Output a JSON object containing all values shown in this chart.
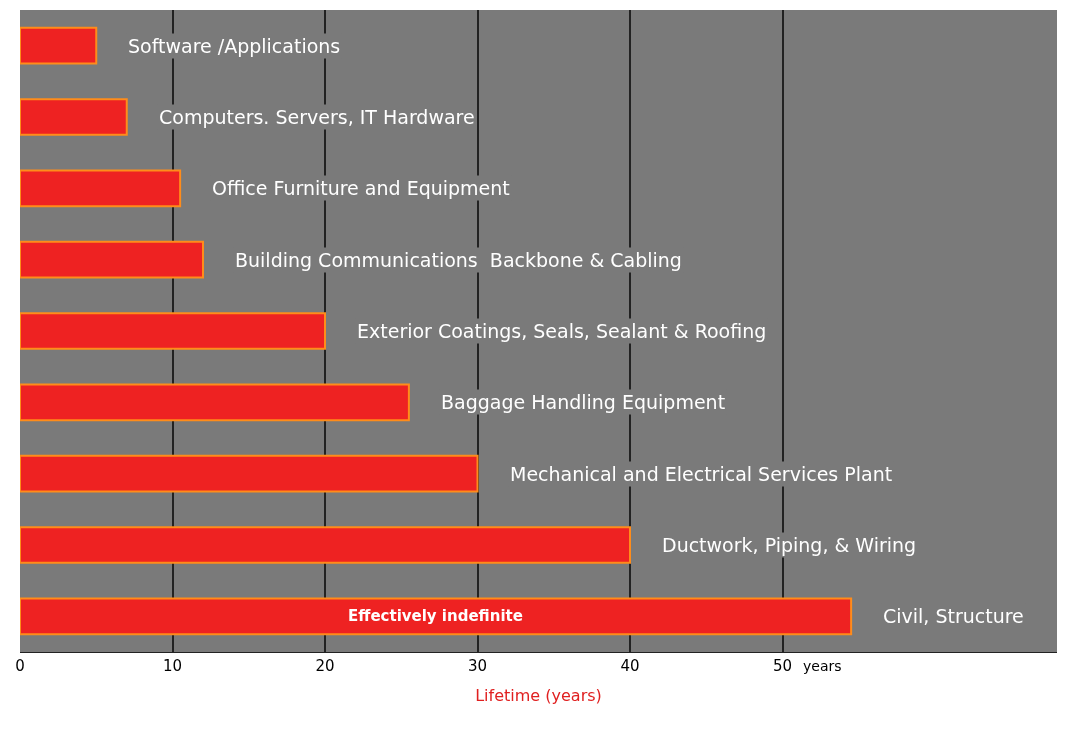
{
  "chart_data": {
    "type": "bar",
    "orientation": "horizontal",
    "xlabel": "Lifetime (years)",
    "categories": [
      "Software /Applications",
      "Computers. Servers, IT Hardware",
      "Office Furniture and Equipment",
      "Building Communications  Backbone & Cabling",
      "Exterior Coatings, Seals, Sealant & Roofing",
      "Baggage Handling Equipment",
      "Mechanical and Electrical Services Plant",
      "Ductwork, Piping, & Wiring",
      "Civil, Structure"
    ],
    "values": [
      5,
      7,
      10.5,
      12,
      20,
      25.5,
      30,
      40,
      54.5
    ],
    "color": "#ee2222",
    "xlim": [
      0,
      68
    ],
    "xticks": [
      0,
      10,
      20,
      30,
      40,
      50
    ],
    "grid": "x",
    "tick_labels": "x",
    "legend": false,
    "annotations": [
      "Effectively indefinite",
      "years"
    ]
  }
}
